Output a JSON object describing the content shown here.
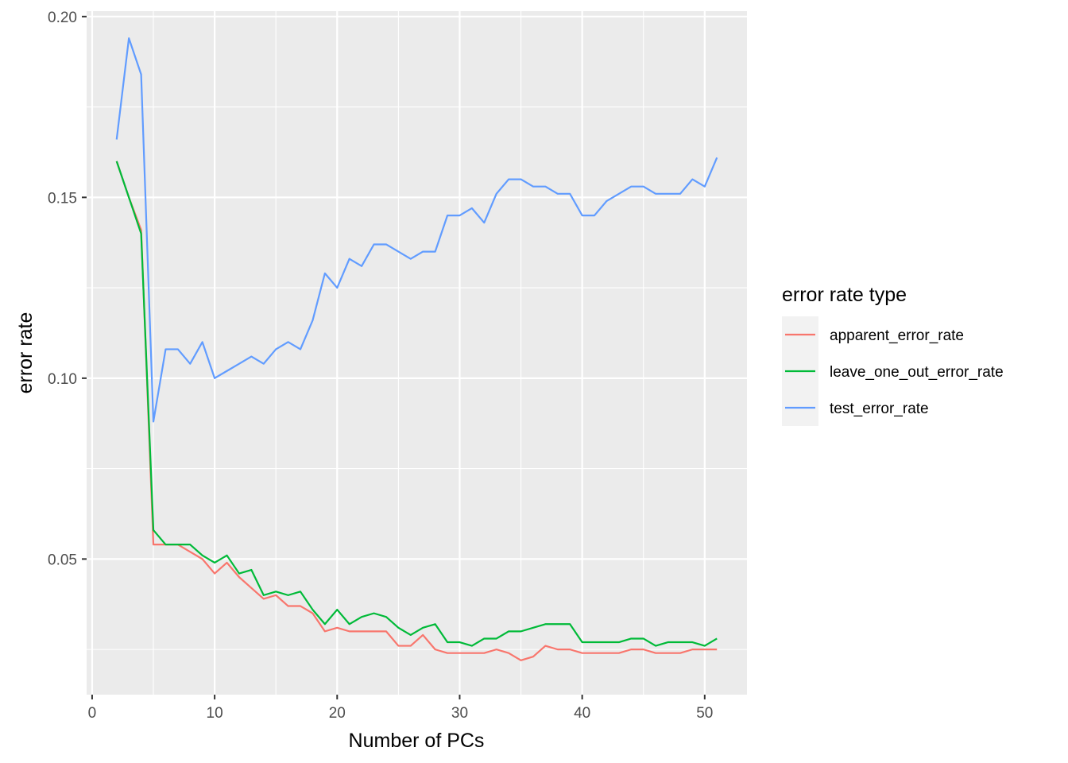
{
  "chart_data": {
    "type": "line",
    "title": "",
    "xlabel": "Number of PCs",
    "ylabel": "error rate",
    "xlim": [
      -0.45,
      53.45
    ],
    "ylim": [
      0.0125,
      0.2015
    ],
    "x_ticks": [
      0,
      10,
      20,
      30,
      40,
      50
    ],
    "y_ticks": [
      0.05,
      0.1,
      0.15,
      0.2
    ],
    "x_tick_labels": [
      "0",
      "10",
      "20",
      "30",
      "40",
      "50"
    ],
    "y_tick_labels": [
      "0.05",
      "0.10",
      "0.15",
      "0.20"
    ],
    "grid": true,
    "legend": {
      "title": "error rate type",
      "position": "right"
    },
    "x": [
      2,
      3,
      4,
      5,
      6,
      7,
      8,
      9,
      10,
      11,
      12,
      13,
      14,
      15,
      16,
      17,
      18,
      19,
      20,
      21,
      22,
      23,
      24,
      25,
      26,
      27,
      28,
      29,
      30,
      31,
      32,
      33,
      34,
      35,
      36,
      37,
      38,
      39,
      40,
      41,
      42,
      43,
      44,
      45,
      46,
      47,
      48,
      49,
      50,
      51
    ],
    "series": [
      {
        "name": "apparent_error_rate",
        "color": "#F8766D",
        "values": [
          0.16,
          0.15,
          0.141,
          0.054,
          0.054,
          0.054,
          0.052,
          0.05,
          0.046,
          0.049,
          0.045,
          0.042,
          0.039,
          0.04,
          0.037,
          0.037,
          0.035,
          0.03,
          0.031,
          0.03,
          0.03,
          0.03,
          0.03,
          0.026,
          0.026,
          0.029,
          0.025,
          0.024,
          0.024,
          0.024,
          0.024,
          0.025,
          0.024,
          0.022,
          0.023,
          0.026,
          0.025,
          0.025,
          0.024,
          0.024,
          0.024,
          0.024,
          0.025,
          0.025,
          0.024,
          0.024,
          0.024,
          0.025,
          0.025,
          0.025
        ]
      },
      {
        "name": "leave_one_out_error_rate",
        "color": "#00BA38",
        "values": [
          0.16,
          0.15,
          0.14,
          0.058,
          0.054,
          0.054,
          0.054,
          0.051,
          0.049,
          0.051,
          0.046,
          0.047,
          0.04,
          0.041,
          0.04,
          0.041,
          0.036,
          0.032,
          0.036,
          0.032,
          0.034,
          0.035,
          0.034,
          0.031,
          0.029,
          0.031,
          0.032,
          0.027,
          0.027,
          0.026,
          0.028,
          0.028,
          0.03,
          0.03,
          0.031,
          0.032,
          0.032,
          0.032,
          0.027,
          0.027,
          0.027,
          0.027,
          0.028,
          0.028,
          0.026,
          0.027,
          0.027,
          0.027,
          0.026,
          0.028
        ]
      },
      {
        "name": "test_error_rate",
        "color": "#619CFF",
        "values": [
          0.166,
          0.194,
          0.184,
          0.088,
          0.108,
          0.108,
          0.104,
          0.11,
          0.1,
          0.102,
          0.104,
          0.106,
          0.104,
          0.108,
          0.11,
          0.108,
          0.116,
          0.129,
          0.125,
          0.133,
          0.131,
          0.137,
          0.137,
          0.135,
          0.133,
          0.135,
          0.135,
          0.145,
          0.145,
          0.147,
          0.143,
          0.151,
          0.155,
          0.155,
          0.153,
          0.153,
          0.151,
          0.151,
          0.145,
          0.145,
          0.149,
          0.151,
          0.153,
          0.153,
          0.151,
          0.151,
          0.151,
          0.155,
          0.153,
          0.161
        ]
      }
    ]
  }
}
